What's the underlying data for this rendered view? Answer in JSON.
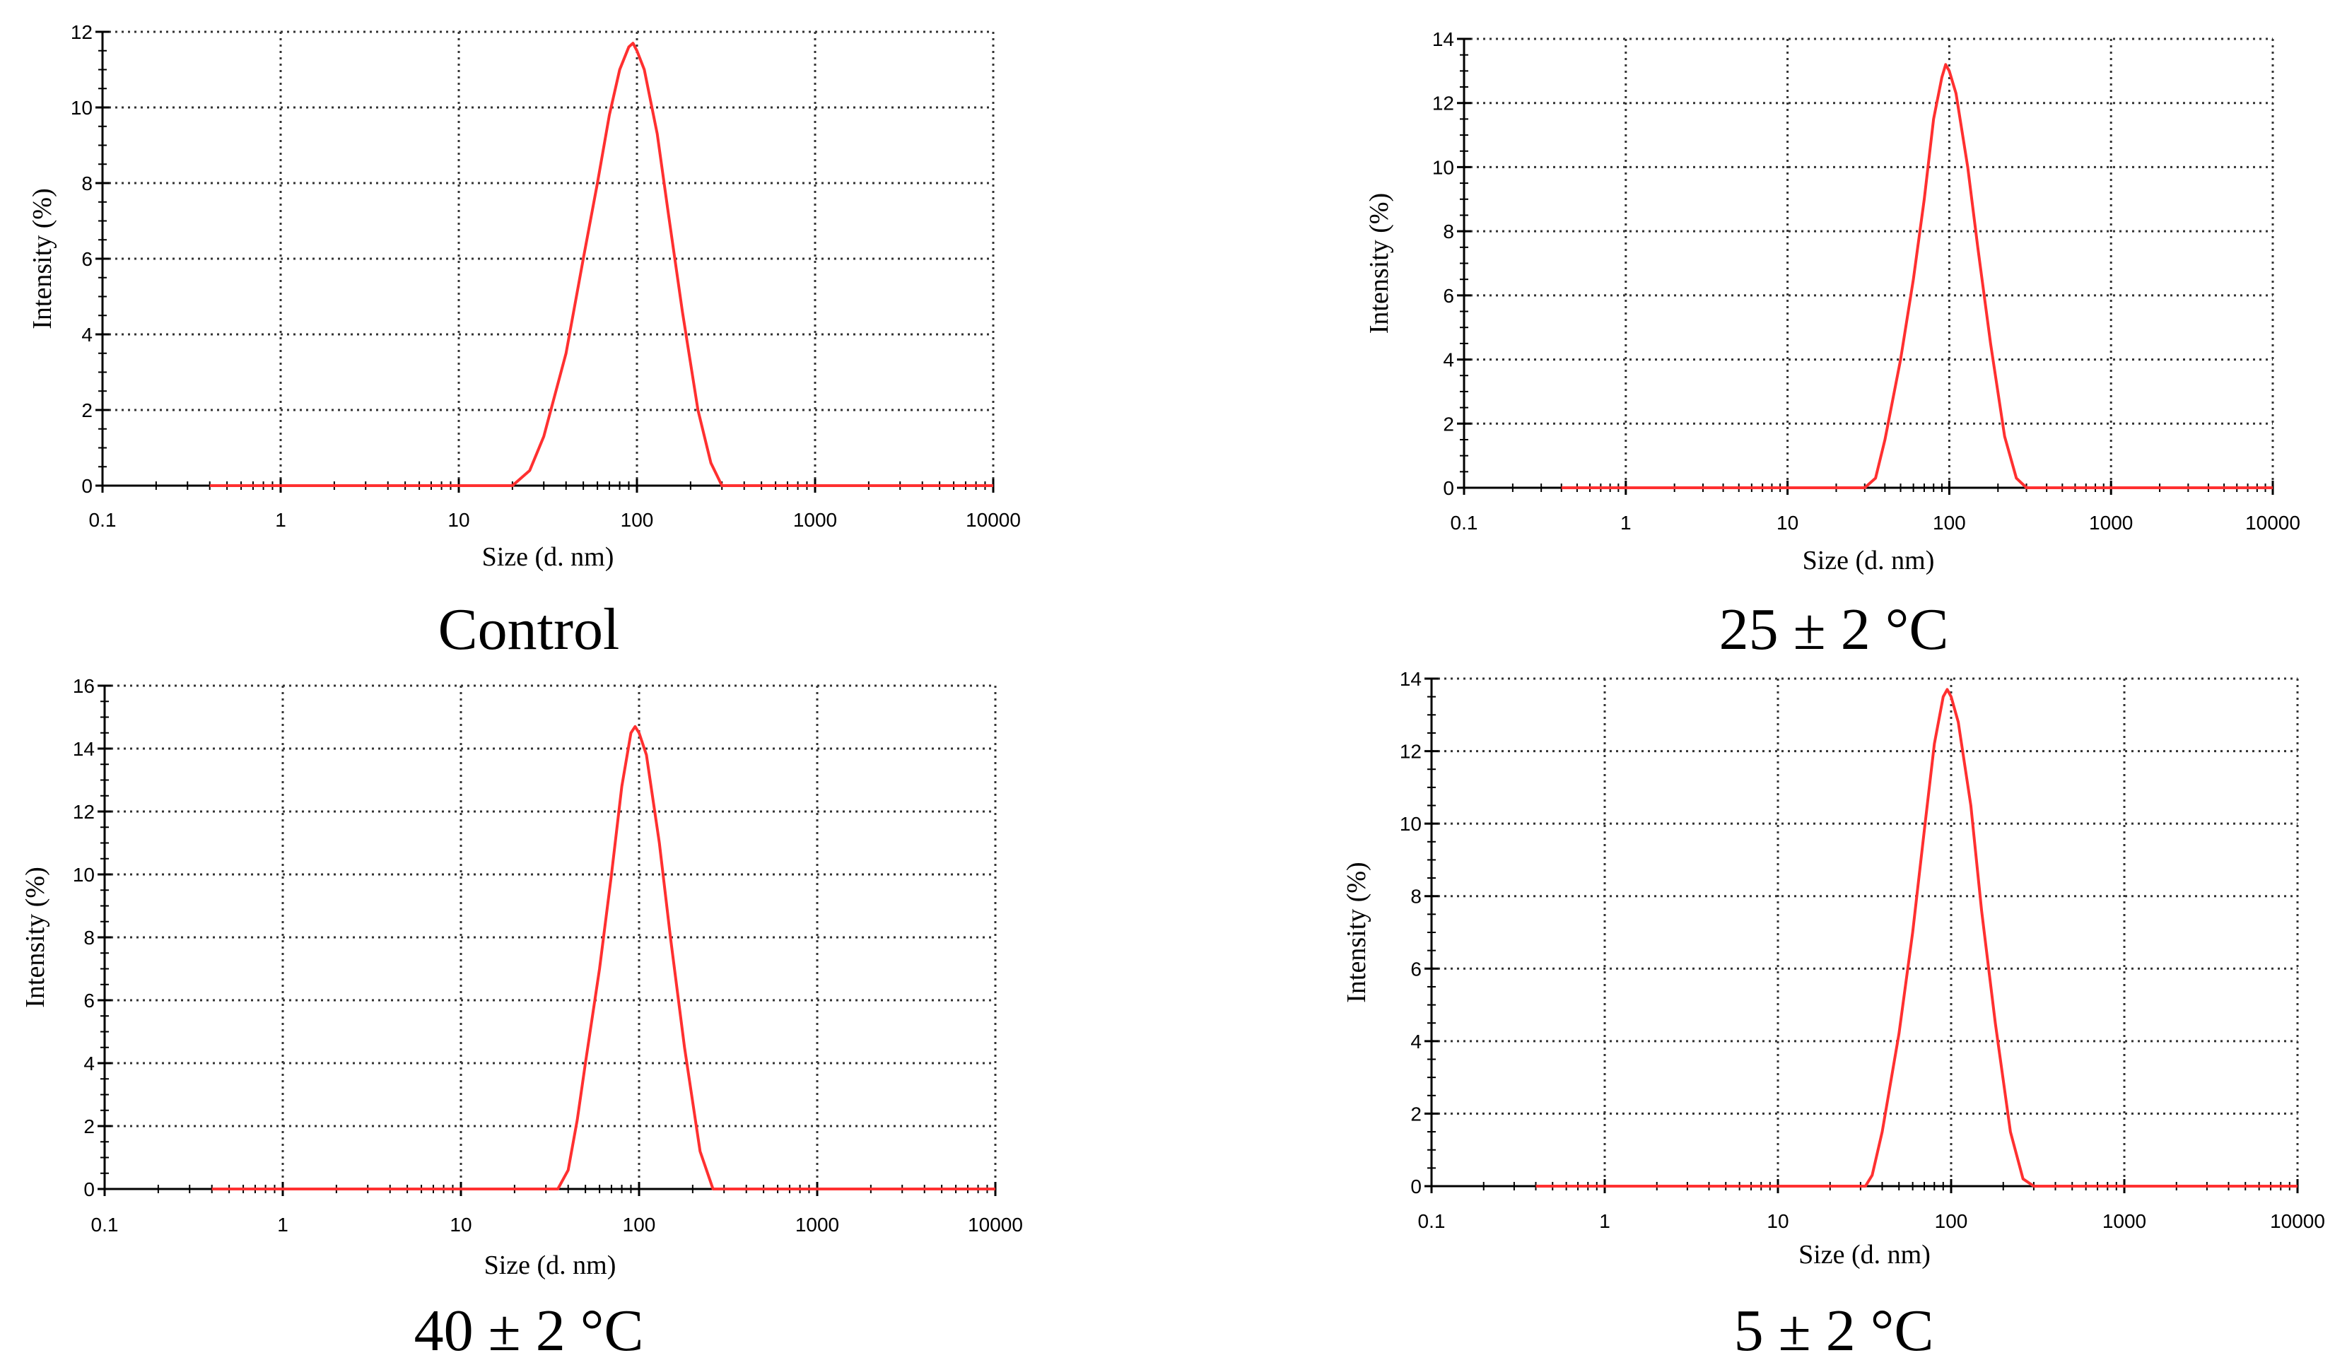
{
  "chart_data": [
    {
      "type": "line",
      "caption": "Control",
      "xlabel": "Size (d. nm)",
      "ylabel": "Intensity (%)",
      "x_scale": "log",
      "xlim": [
        0.1,
        10000
      ],
      "ylim": [
        0,
        12
      ],
      "x_ticks": [
        "0.1",
        "1",
        "10",
        "100",
        "1000",
        "10000"
      ],
      "y_ticks": [
        "0",
        "2",
        "4",
        "6",
        "8",
        "10",
        "12"
      ],
      "grid": true,
      "line_color": "#ff3030",
      "series": [
        {
          "x": [
            0.4,
            10,
            20,
            25,
            30,
            40,
            50,
            60,
            70,
            80,
            90,
            95,
            100,
            110,
            130,
            150,
            180,
            220,
            260,
            300,
            400,
            1000,
            10000
          ],
          "y": [
            0,
            0,
            0,
            0.4,
            1.3,
            3.5,
            6.0,
            8.0,
            9.8,
            11.0,
            11.6,
            11.7,
            11.5,
            11.0,
            9.3,
            7.2,
            4.6,
            2.0,
            0.6,
            0,
            0,
            0,
            0
          ]
        }
      ]
    },
    {
      "type": "line",
      "caption": "25 ± 2 °C",
      "xlabel": "Size (d. nm)",
      "ylabel": "Intensity (%)",
      "x_scale": "log",
      "xlim": [
        0.1,
        10000
      ],
      "ylim": [
        0,
        14
      ],
      "x_ticks": [
        "0.1",
        "1",
        "10",
        "100",
        "1000",
        "10000"
      ],
      "y_ticks": [
        "0",
        "2",
        "4",
        "6",
        "8",
        "10",
        "12",
        "14"
      ],
      "grid": true,
      "line_color": "#ff3030",
      "series": [
        {
          "x": [
            0.4,
            10,
            30,
            35,
            40,
            50,
            60,
            70,
            80,
            90,
            95,
            100,
            110,
            130,
            150,
            180,
            220,
            260,
            300,
            1000,
            10000
          ],
          "y": [
            0,
            0,
            0,
            0.3,
            1.5,
            4.0,
            6.5,
            9.0,
            11.5,
            12.8,
            13.2,
            13.0,
            12.3,
            10.0,
            7.5,
            4.5,
            1.6,
            0.3,
            0,
            0,
            0
          ]
        }
      ]
    },
    {
      "type": "line",
      "caption": "40 ± 2 °C",
      "xlabel": "Size (d. nm)",
      "ylabel": "Intensity (%)",
      "x_scale": "log",
      "xlim": [
        0.1,
        10000
      ],
      "ylim": [
        0,
        16
      ],
      "x_ticks": [
        "0.1",
        "1",
        "10",
        "100",
        "1000",
        "10000"
      ],
      "y_ticks": [
        "0",
        "2",
        "4",
        "6",
        "8",
        "10",
        "12",
        "14",
        "16"
      ],
      "grid": true,
      "line_color": "#ff3030",
      "series": [
        {
          "x": [
            0.4,
            10,
            35,
            40,
            45,
            50,
            60,
            70,
            80,
            90,
            95,
            100,
            110,
            130,
            150,
            180,
            220,
            260,
            1000,
            10000
          ],
          "y": [
            0,
            0,
            0,
            0.6,
            2.2,
            4.0,
            7.0,
            10.0,
            12.8,
            14.5,
            14.7,
            14.5,
            13.8,
            11.0,
            8.0,
            4.5,
            1.2,
            0,
            0,
            0
          ]
        }
      ]
    },
    {
      "type": "line",
      "caption": "5 ± 2 °C",
      "xlabel": "Size (d. nm)",
      "ylabel": "Intensity (%)",
      "x_scale": "log",
      "xlim": [
        0.1,
        10000
      ],
      "ylim": [
        0,
        14
      ],
      "x_ticks": [
        "0.1",
        "1",
        "10",
        "100",
        "1000",
        "10000"
      ],
      "y_ticks": [
        "0",
        "2",
        "4",
        "6",
        "8",
        "10",
        "12",
        "14"
      ],
      "grid": true,
      "line_color": "#ff3030",
      "series": [
        {
          "x": [
            0.4,
            10,
            32,
            35,
            40,
            50,
            60,
            70,
            80,
            90,
            95,
            100,
            110,
            130,
            150,
            180,
            220,
            260,
            300,
            1000,
            10000
          ],
          "y": [
            0,
            0,
            0,
            0.3,
            1.5,
            4.2,
            7.0,
            9.8,
            12.2,
            13.5,
            13.7,
            13.5,
            12.8,
            10.5,
            7.6,
            4.5,
            1.5,
            0.2,
            0,
            0,
            0
          ]
        }
      ]
    }
  ]
}
